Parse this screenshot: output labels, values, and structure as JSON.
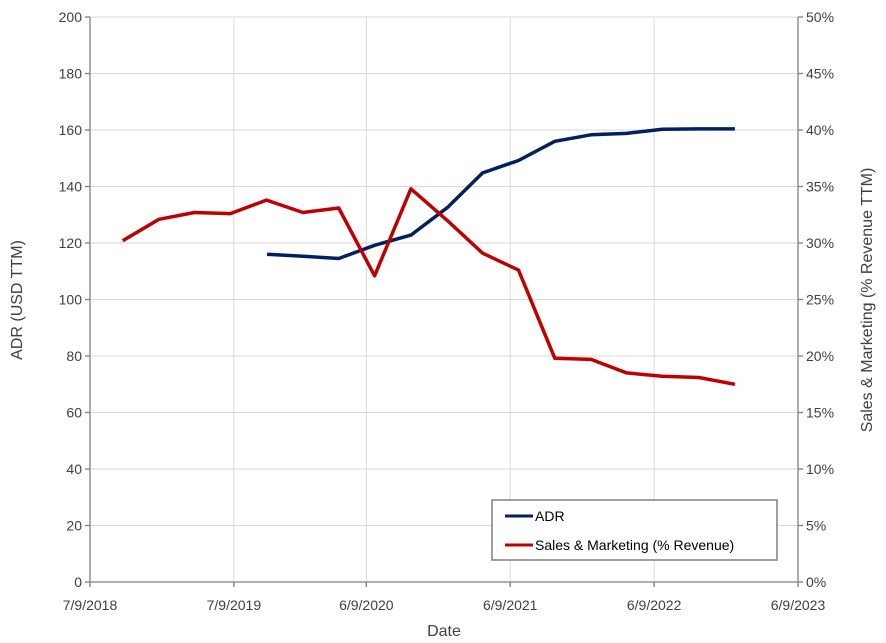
{
  "chart_data": {
    "type": "line",
    "xlabel": "Date",
    "ylabel_left": "ADR (USD TTM)",
    "ylabel_right": "Sales & Marketing (% Revenue TTM)",
    "x_ticks": [
      "7/9/2018",
      "7/9/2019",
      "6/9/2020",
      "6/9/2021",
      "6/9/2022",
      "6/9/2023"
    ],
    "xlim": [
      "2018-07-09",
      "2023-06-09"
    ],
    "ylim_left": [
      0,
      200
    ],
    "y_ticks_left": [
      "0",
      "20",
      "40",
      "60",
      "80",
      "100",
      "120",
      "140",
      "160",
      "180",
      "200"
    ],
    "ylim_right": [
      0,
      50
    ],
    "y_ticks_right": [
      "0%",
      "5%",
      "10%",
      "15%",
      "20%",
      "25%",
      "30%",
      "35%",
      "40%",
      "45%",
      "50%"
    ],
    "grid": true,
    "legend_position": "bottom-right",
    "series": [
      {
        "name": "ADR",
        "axis": "left",
        "color": "#002060",
        "points": [
          {
            "x": "2019-10-01",
            "y": 116
          },
          {
            "x": "2020-01-01",
            "y": 115.3
          },
          {
            "x": "2020-03-31",
            "y": 114.5
          },
          {
            "x": "2020-06-30",
            "y": 119.2
          },
          {
            "x": "2020-09-30",
            "y": 122.8
          },
          {
            "x": "2020-12-31",
            "y": 132.5
          },
          {
            "x": "2021-03-31",
            "y": 144.8
          },
          {
            "x": "2021-06-30",
            "y": 149.2
          },
          {
            "x": "2021-09-30",
            "y": 156
          },
          {
            "x": "2021-12-31",
            "y": 158.3
          },
          {
            "x": "2022-03-31",
            "y": 158.8
          },
          {
            "x": "2022-06-30",
            "y": 160.3
          },
          {
            "x": "2022-09-30",
            "y": 160.4
          },
          {
            "x": "2022-12-31",
            "y": 160.4
          }
        ]
      },
      {
        "name": "Sales & Marketing (% Revenue)",
        "axis": "right",
        "color": "#c00000",
        "points": [
          {
            "x": "2018-09-30",
            "y": 30.2
          },
          {
            "x": "2018-12-31",
            "y": 32.1
          },
          {
            "x": "2019-03-31",
            "y": 32.7
          },
          {
            "x": "2019-06-30",
            "y": 32.6
          },
          {
            "x": "2019-09-30",
            "y": 33.8
          },
          {
            "x": "2019-12-31",
            "y": 32.7
          },
          {
            "x": "2020-03-31",
            "y": 33.1
          },
          {
            "x": "2020-06-30",
            "y": 27.1
          },
          {
            "x": "2020-09-30",
            "y": 34.8
          },
          {
            "x": "2020-12-31",
            "y": 32
          },
          {
            "x": "2021-03-31",
            "y": 29.1
          },
          {
            "x": "2021-06-30",
            "y": 27.6
          },
          {
            "x": "2021-09-30",
            "y": 19.8
          },
          {
            "x": "2021-12-31",
            "y": 19.7
          },
          {
            "x": "2022-03-31",
            "y": 18.5
          },
          {
            "x": "2022-06-30",
            "y": 18.2
          },
          {
            "x": "2022-09-30",
            "y": 18.1
          },
          {
            "x": "2022-12-31",
            "y": 17.5
          }
        ]
      }
    ]
  }
}
